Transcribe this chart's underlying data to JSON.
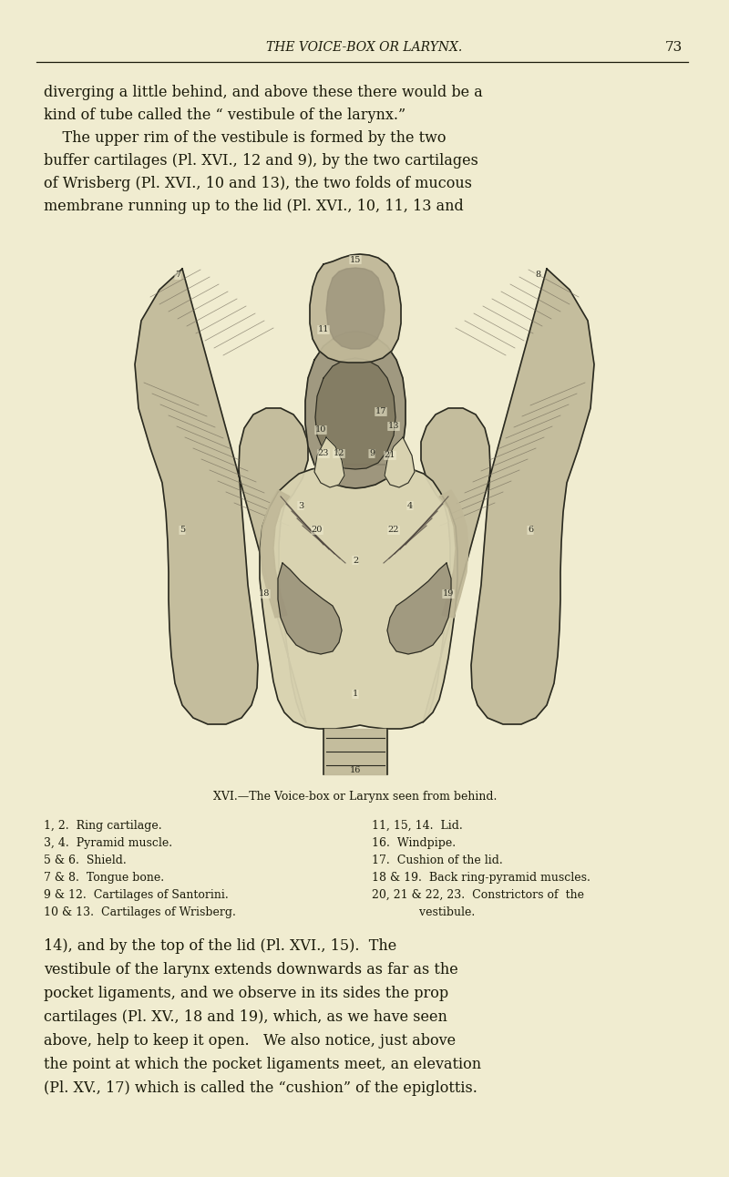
{
  "background_color": "#f0ecd0",
  "page_width": 8.0,
  "page_height": 12.92,
  "header_text": "THE VOICE-BOX OR LARYNX.",
  "header_page_num": "73",
  "text_color": "#1a1a0a",
  "line_color": "#1a1a0a",
  "top_lines": [
    "diverging a little behind, and above these there would be a",
    "kind of tube called the “ vestibule of the larynx.”",
    "    The upper rim of the vestibule is formed by the two",
    "buffer cartilages (Pl. XVI., 12 and 9), by the two cartilages",
    "of Wrisberg (Pl. XVI., 10 and 13), the two folds of mucous",
    "membrane running up to the lid (Pl. XVI., 10, 11, 13 and"
  ],
  "caption": "XVI.—The Voice-box or Larynx seen from behind.",
  "legend_left": [
    "1, 2.  Ring cartilage.",
    "3, 4.  Pyramid muscle.",
    "5 & 6.  Shield.",
    "7 & 8.  Tongue bone.",
    "9 & 12.  Cartilages of Santorini.",
    "10 & 13.  Cartilages of Wrisberg."
  ],
  "legend_right": [
    "11, 15, 14.  Lid.",
    "16.  Windpipe.",
    "17.  Cushion of the lid.",
    "18 & 19.  Back ring-pyramid muscles.",
    "20, 21 & 22, 23.  Constrictors of  the",
    "             vestibule."
  ],
  "bottom_lines": [
    "14), and by the top of the lid (Pl. XVI., 15).  The",
    "vestibule of the larynx extends downwards as far as the",
    "pocket ligaments, and we observe in its sides the prop",
    "cartilages (Pl. XV., 18 and 19), which, as we have seen",
    "above, help to keep it open.   We also notice, just above",
    "the point at which the pocket ligaments meet, an elevation",
    "(Pl. XV., 17) which is called the “cushion” of the epiglottis."
  ]
}
